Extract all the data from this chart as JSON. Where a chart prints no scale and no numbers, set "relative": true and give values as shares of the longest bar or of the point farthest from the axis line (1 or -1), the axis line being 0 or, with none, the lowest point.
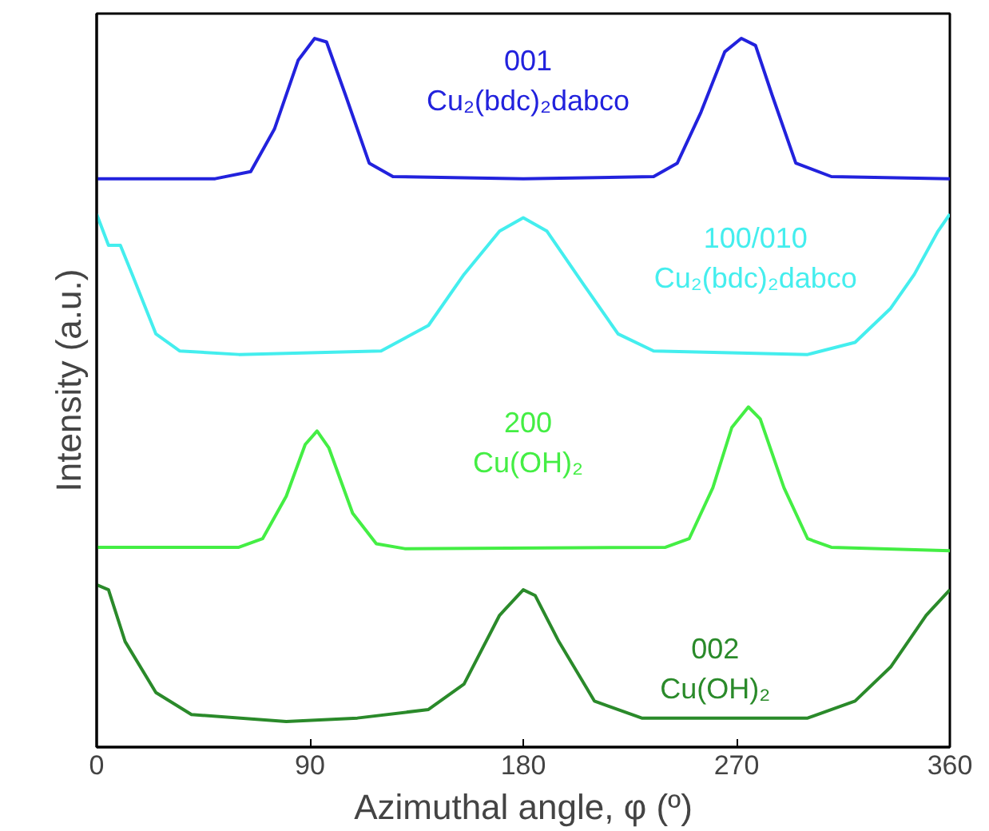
{
  "chart_data": {
    "type": "line",
    "relative": true,
    "xlabel": "Azimuthal angle, φ (º)",
    "ylabel": "Intensity (a.u.)",
    "xlim": [
      0,
      360
    ],
    "xticks": [
      0,
      90,
      180,
      270,
      360
    ],
    "grid": false,
    "series": [
      {
        "name": "001\nCu₂(bdc)₂dabco",
        "color": "#2222dd",
        "x": [
          0,
          50,
          65,
          75,
          85,
          92,
          97,
          105,
          115,
          125,
          180,
          235,
          245,
          255,
          265,
          272,
          278,
          285,
          295,
          310,
          360
        ],
        "values": [
          0.802,
          0.802,
          0.812,
          0.872,
          0.969,
          1.0,
          0.995,
          0.92,
          0.824,
          0.805,
          0.802,
          0.805,
          0.824,
          0.896,
          0.981,
          1.0,
          0.99,
          0.92,
          0.824,
          0.805,
          0.802
        ]
      },
      {
        "name": "100/010\nCu₂(bdc)₂dabco",
        "color": "#44eeee",
        "x": [
          0,
          5,
          10,
          15,
          25,
          35,
          60,
          120,
          140,
          155,
          170,
          180,
          190,
          205,
          220,
          235,
          300,
          320,
          335,
          345,
          355,
          360
        ],
        "values": [
          0.752,
          0.708,
          0.708,
          0.667,
          0.583,
          0.559,
          0.554,
          0.559,
          0.595,
          0.667,
          0.728,
          0.747,
          0.728,
          0.655,
          0.583,
          0.559,
          0.554,
          0.571,
          0.619,
          0.667,
          0.728,
          0.752
        ]
      },
      {
        "name": "200\nCu(OH)₂",
        "color": "#44ee44",
        "x": [
          0,
          60,
          70,
          80,
          88,
          93,
          98,
          108,
          118,
          130,
          240,
          250,
          260,
          268,
          275,
          280,
          290,
          300,
          310,
          360
        ],
        "values": [
          0.282,
          0.282,
          0.294,
          0.354,
          0.427,
          0.446,
          0.422,
          0.33,
          0.287,
          0.28,
          0.282,
          0.294,
          0.366,
          0.451,
          0.48,
          0.463,
          0.366,
          0.294,
          0.282,
          0.277
        ]
      },
      {
        "name": "002\nCu(OH)₂",
        "color": "#2a8a2a",
        "x": [
          0,
          5,
          12,
          25,
          40,
          80,
          110,
          140,
          155,
          170,
          180,
          185,
          195,
          210,
          230,
          300,
          320,
          335,
          350,
          360
        ],
        "values": [
          0.229,
          0.222,
          0.149,
          0.077,
          0.046,
          0.036,
          0.041,
          0.053,
          0.089,
          0.186,
          0.222,
          0.214,
          0.149,
          0.065,
          0.041,
          0.041,
          0.065,
          0.113,
          0.186,
          0.222
        ]
      }
    ]
  }
}
